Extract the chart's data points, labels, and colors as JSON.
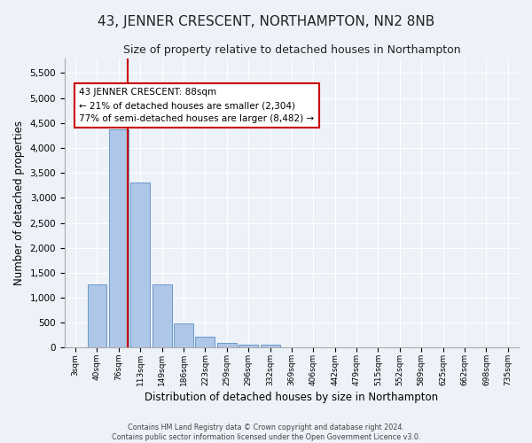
{
  "title": "43, JENNER CRESCENT, NORTHAMPTON, NN2 8NB",
  "subtitle": "Size of property relative to detached houses in Northampton",
  "xlabel": "Distribution of detached houses by size in Northampton",
  "ylabel": "Number of detached properties",
  "footer_line1": "Contains HM Land Registry data © Crown copyright and database right 2024.",
  "footer_line2": "Contains public sector information licensed under the Open Government Licence v3.0.",
  "bar_labels": [
    "3sqm",
    "40sqm",
    "76sqm",
    "113sqm",
    "149sqm",
    "186sqm",
    "223sqm",
    "259sqm",
    "296sqm",
    "332sqm",
    "369sqm",
    "406sqm",
    "442sqm",
    "479sqm",
    "515sqm",
    "552sqm",
    "589sqm",
    "625sqm",
    "662sqm",
    "698sqm",
    "735sqm"
  ],
  "bar_values": [
    0,
    1260,
    4370,
    3310,
    1265,
    490,
    215,
    90,
    55,
    55,
    0,
    0,
    0,
    0,
    0,
    0,
    0,
    0,
    0,
    0,
    0
  ],
  "bar_color": "#aec6e8",
  "bar_edge_color": "#5a8fc0",
  "vline_color": "#cc0000",
  "annotation_text": "43 JENNER CRESCENT: 88sqm\n← 21% of detached houses are smaller (2,304)\n77% of semi-detached houses are larger (8,482) →",
  "annotation_box_color": "#ffffff",
  "annotation_box_edge": "#cc0000",
  "ylim": [
    0,
    5800
  ],
  "yticks": [
    0,
    500,
    1000,
    1500,
    2000,
    2500,
    3000,
    3500,
    4000,
    4500,
    5000,
    5500
  ],
  "bg_color": "#edf1f8",
  "plot_bg_color": "#edf1f8",
  "title_fontsize": 11,
  "subtitle_fontsize": 9,
  "xlabel_fontsize": 8.5,
  "ylabel_fontsize": 8.5
}
